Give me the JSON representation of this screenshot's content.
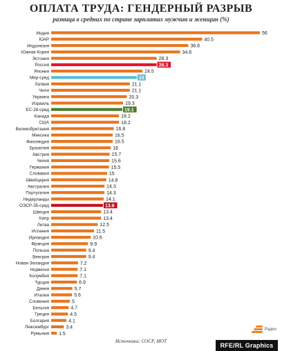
{
  "header": {
    "title": "ОПЛАТА ТРУДА: ГЕНДЕРНЫЙ РАЗРЫВ",
    "subtitle": "разница в средних по стране зарплатах мужчин и женщин (%)"
  },
  "footer": {
    "source": "Источники: ОЭСР, МОТ",
    "brand": "RFE/RL Graphics",
    "logo_text": "Радио"
  },
  "colors": {
    "default": "#e8761f",
    "russia": "#e5152d",
    "world_avg": "#5bb9d6",
    "eu_avg": "#4f7c2e",
    "oecd_avg": "#c1121f"
  },
  "chart_data": {
    "type": "bar",
    "orientation": "horizontal",
    "title": "ОПЛАТА ТРУДА: ГЕНДЕРНЫЙ РАЗРЫВ",
    "subtitle": "разница в средних по стране зарплатах мужчин и женщин (%)",
    "xlim": [
      0,
      56
    ],
    "grid": false,
    "categories": [
      "Индия",
      "ЮАР",
      "Индонезия",
      "Южная Корея",
      "Эстония",
      "Россия",
      "Япония",
      "Мир-сред",
      "Латвия",
      "Чили",
      "Украина",
      "Израиль",
      "ЕС-28-сред",
      "Канада",
      "США",
      "Великобритания",
      "Мексика",
      "Финляндия",
      "Бразилия",
      "Австрия",
      "Чехия",
      "Германия",
      "Словакия",
      "Швейцария",
      "Австралия",
      "Португалия",
      "Нидерланды",
      "ОЭСР-35-сред",
      "Швеция",
      "Кипр",
      "Литва",
      "Испания",
      "Ирландия",
      "Франция",
      "Польша",
      "Венгрия",
      "Новая Зеландия",
      "Норвегия",
      "Колумбия",
      "Турция",
      "Дания",
      "Италия",
      "Словения",
      "Бельгия",
      "Греция",
      "Болгария",
      "Люксембург",
      "Румыния"
    ],
    "values": [
      56,
      40.5,
      36.8,
      34.6,
      28.3,
      28.3,
      24.5,
      23,
      21.1,
      21.1,
      20.3,
      19.3,
      19.1,
      18.2,
      18.2,
      16.8,
      16.5,
      16.5,
      16,
      15.7,
      15.6,
      15.5,
      15,
      14.8,
      14.3,
      14.3,
      14.1,
      13.9,
      13.4,
      13.4,
      12.5,
      11.5,
      10.6,
      9.9,
      9.4,
      9.4,
      7.2,
      7.1,
      7.1,
      6.9,
      5.7,
      5.6,
      5,
      4.7,
      4.5,
      4.1,
      3.4,
      1.5
    ],
    "highlights": {
      "Россия": "russia",
      "Мир-сред": "world_avg",
      "ЕС-28-сред": "eu_avg",
      "ОЭСР-35-сред": "oecd_avg"
    }
  }
}
